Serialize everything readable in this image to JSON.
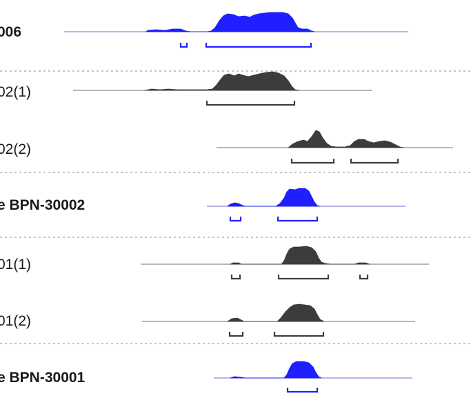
{
  "colors": {
    "highlight": "#1f1fff",
    "sample": "#3c3c3c",
    "baseline_highlight": "#8a8ad8",
    "baseline_sample": "#8c8c8c",
    "separator": "#a0a0a0"
  },
  "tracks": [
    {
      "label": "006",
      "bold": true,
      "style": "highlight"
    },
    {
      "label": "02(1)",
      "bold": false,
      "style": "sample"
    },
    {
      "label": "02(2)",
      "bold": false,
      "style": "sample"
    },
    {
      "label": "e BPN-30002",
      "bold": true,
      "style": "highlight"
    },
    {
      "label": "01(1)",
      "bold": false,
      "style": "sample"
    },
    {
      "label": "01(2)",
      "bold": false,
      "style": "sample"
    },
    {
      "label": "e BPN-30001",
      "bold": true,
      "style": "highlight"
    }
  ]
}
